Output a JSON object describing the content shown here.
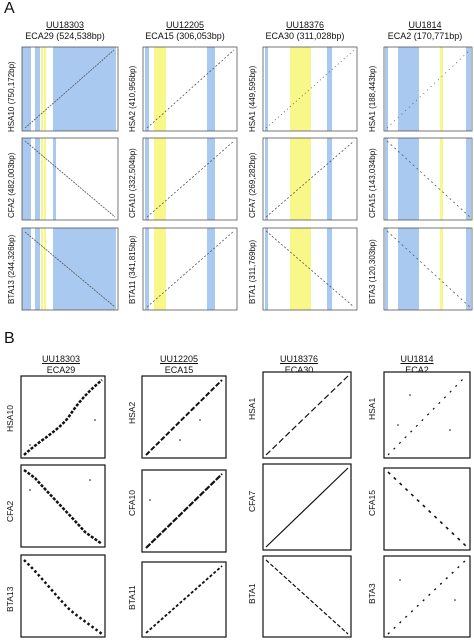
{
  "panels": {
    "a": {
      "letter": "A",
      "columns": [
        {
          "id": "UU18303",
          "chr": "ECA29 (524,538bp)",
          "rows": [
            "HSA10 (750,172bp)",
            "CFA2 (482,003bp)",
            "BTA13 (244,326bp)"
          ]
        },
        {
          "id": "UU12205",
          "chr": "ECA15 (306,053bp)",
          "rows": [
            "HSA2 (410,956bp)",
            "CFA10 (332,504bp)",
            "BTA11 (341,815bp)"
          ]
        },
        {
          "id": "UU18376",
          "chr": "ECA30 (311,028bp)",
          "rows": [
            "HSA1 (449,595bp)",
            "CFA7 (269,282bp)",
            "BTA1 (311,769bp)"
          ]
        },
        {
          "id": "UU1814",
          "chr": "ECA2 (170,771bp)",
          "rows": [
            "HSA1 (188,443bp)",
            "CFA15 (143,034bp)",
            "BTA3 (120,303bp)"
          ]
        }
      ]
    },
    "b": {
      "letter": "B",
      "columns": [
        {
          "id": "UU18303",
          "chr": "ECA29",
          "rows": [
            "HSA10",
            "CFA2",
            "BTA13"
          ]
        },
        {
          "id": "UU12205",
          "chr": "ECA15",
          "rows": [
            "HSA2",
            "CFA10",
            "BTA11"
          ]
        },
        {
          "id": "UU18376",
          "chr": "ECA30",
          "rows": [
            "HSA1",
            "CFA7",
            "BTA1"
          ]
        },
        {
          "id": "UU1814",
          "chr": "ECA2",
          "rows": [
            "HSA1",
            "CFA15",
            "BTA3"
          ]
        }
      ]
    }
  },
  "colors": {
    "blue_region": "#a9c9f0",
    "yellow_region": "#f7f78a",
    "frame": "#555555",
    "dots": "#111111"
  }
}
